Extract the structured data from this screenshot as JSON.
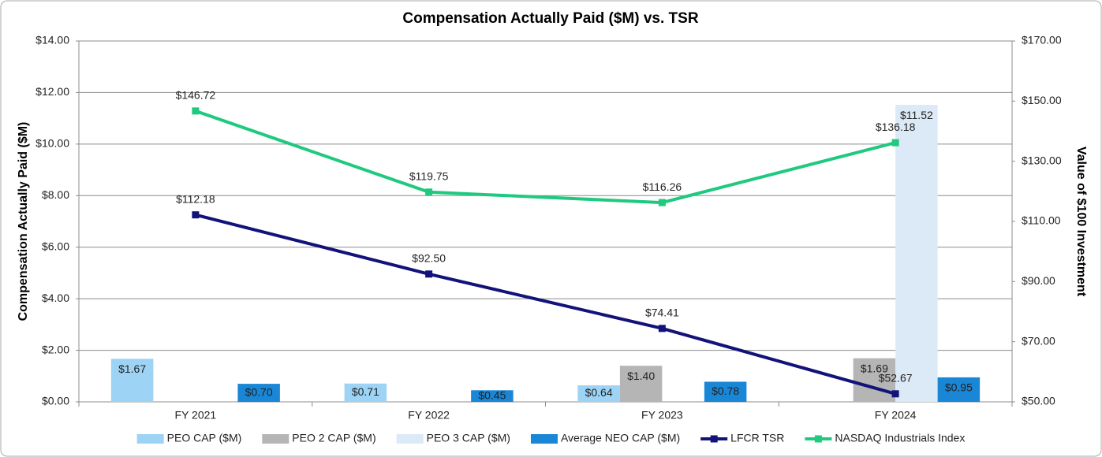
{
  "chart_data": {
    "type": "combo",
    "title": "Compensation Actually Paid ($M) vs. TSR",
    "y_label": "Compensation Actually Paid ($M)",
    "y2_label": "Value of $100 Investment",
    "categories": [
      "FY 2021",
      "FY 2022",
      "FY 2023",
      "FY 2024"
    ],
    "ylim": [
      0,
      14
    ],
    "yticks": [
      {
        "value": 0,
        "label": "$0.00"
      },
      {
        "value": 2,
        "label": "$2.00"
      },
      {
        "value": 4,
        "label": "$4.00"
      },
      {
        "value": 6,
        "label": "$6.00"
      },
      {
        "value": 8,
        "label": "$8.00"
      },
      {
        "value": 10,
        "label": "$10.00"
      },
      {
        "value": 12,
        "label": "$12.00"
      },
      {
        "value": 14,
        "label": "$14.00"
      }
    ],
    "y2lim": [
      50,
      170
    ],
    "y2ticks": [
      {
        "value": 50,
        "label": "$50.00"
      },
      {
        "value": 70,
        "label": "$70.00"
      },
      {
        "value": 90,
        "label": "$90.00"
      },
      {
        "value": 110,
        "label": "$110.00"
      },
      {
        "value": 130,
        "label": "$130.00"
      },
      {
        "value": 150,
        "label": "$150.00"
      },
      {
        "value": 170,
        "label": "$170.00"
      }
    ],
    "grid": true,
    "legend": "bottom",
    "series": [
      {
        "name": "PEO CAP ($M)",
        "type": "bar",
        "color": "#9dd3f5",
        "values": [
          1.67,
          0.71,
          0.64,
          null
        ],
        "value_labels": [
          "$1.67",
          "$0.71",
          "$0.64",
          null
        ]
      },
      {
        "name": "PEO 2 CAP ($M)",
        "type": "bar",
        "color": "#b5b5b5",
        "values": [
          null,
          null,
          1.4,
          1.69
        ],
        "value_labels": [
          null,
          null,
          "$1.40",
          "$1.69"
        ]
      },
      {
        "name": "PEO 3 CAP ($M)",
        "type": "bar",
        "color": "#dce9f6",
        "values": [
          null,
          null,
          null,
          11.52
        ],
        "value_labels": [
          null,
          null,
          null,
          "$11.52"
        ]
      },
      {
        "name": "Average NEO CAP ($M)",
        "type": "bar",
        "color": "#1a86d6",
        "values": [
          0.7,
          0.45,
          0.78,
          0.95
        ],
        "value_labels": [
          "$0.70",
          "$0.45",
          "$0.78",
          "$0.95"
        ]
      },
      {
        "name": "LFCR TSR",
        "type": "line",
        "axis": "y2",
        "color": "#12127a",
        "values": [
          112.18,
          92.5,
          74.41,
          52.67
        ],
        "value_labels": [
          "$112.18",
          "$92.50",
          "$74.41",
          "$52.67"
        ]
      },
      {
        "name": "NASDAQ Industrials Index",
        "type": "line",
        "axis": "y2",
        "color": "#1fc97e",
        "values": [
          146.72,
          119.75,
          116.26,
          136.18
        ],
        "value_labels": [
          "$146.72",
          "$119.75",
          "$116.26",
          "$136.18"
        ]
      }
    ]
  }
}
